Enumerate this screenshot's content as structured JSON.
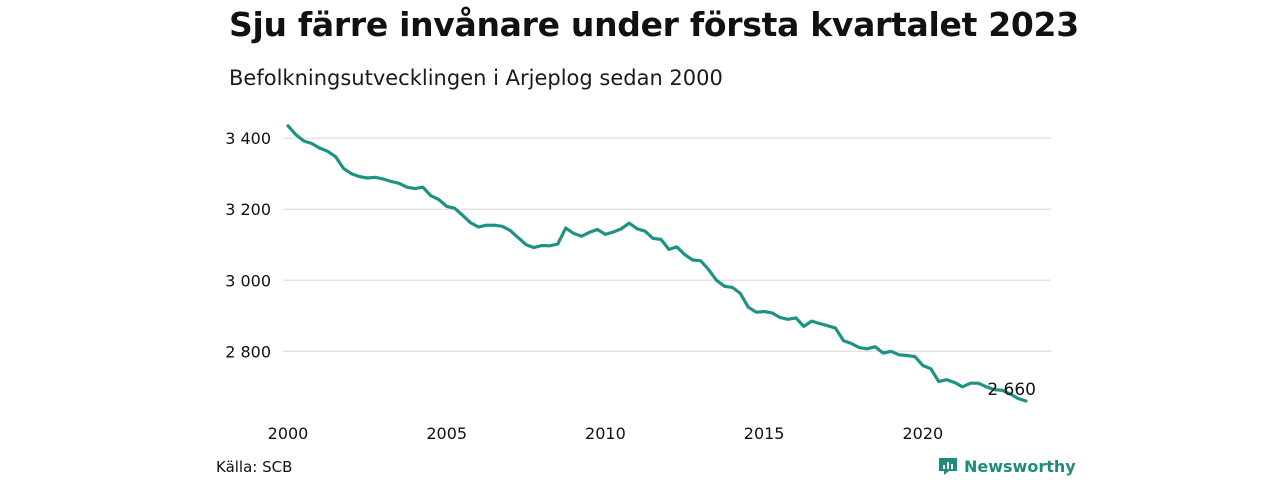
{
  "title": "Sju färre invånare under första kvartalet 2023",
  "subtitle": "Befolkningsutvecklingen i Arjeplog sedan 2000",
  "source": "Källa: SCB",
  "brand": "Newsworthy",
  "colors": {
    "line": "#1e9384",
    "grid": "#dedede",
    "text": "#111111",
    "brand": "#1e8c7c"
  },
  "chart_data": {
    "type": "line",
    "title": "Sju färre invånare under första kvartalet 2023",
    "subtitle": "Befolkningsutvecklingen i Arjeplog sedan 2000",
    "xlabel": "",
    "ylabel": "",
    "xlim": [
      2000,
      2023.25
    ],
    "ylim": [
      2660,
      3440
    ],
    "x_ticks": [
      2000,
      2005,
      2010,
      2015,
      2020
    ],
    "x_tick_labels": [
      "2000",
      "2005",
      "2010",
      "2015",
      "2020"
    ],
    "y_ticks": [
      2800,
      3000,
      3200,
      3400
    ],
    "y_tick_labels": [
      "2 800",
      "3 000",
      "3 200",
      "3 400"
    ],
    "grid": "horizontal",
    "legend": "none",
    "annotation": {
      "x": 2023.25,
      "y": 2660,
      "text": "2 660"
    },
    "series": [
      {
        "x": [
          2000.0,
          2000.25,
          2000.5,
          2000.75,
          2001.0,
          2001.25,
          2001.5,
          2001.75,
          2002.0,
          2002.25,
          2002.5,
          2002.75,
          2003.0,
          2003.25,
          2003.5,
          2003.75,
          2004.0,
          2004.25,
          2004.5,
          2004.75,
          2005.0,
          2005.25,
          2005.5,
          2005.75,
          2006.0,
          2006.25,
          2006.5,
          2006.75,
          2007.0,
          2007.25,
          2007.5,
          2007.75,
          2008.0,
          2008.25,
          2008.5,
          2008.75,
          2009.0,
          2009.25,
          2009.5,
          2009.75,
          2010.0,
          2010.25,
          2010.5,
          2010.75,
          2011.0,
          2011.25,
          2011.5,
          2011.75,
          2012.0,
          2012.25,
          2012.5,
          2012.75,
          2013.0,
          2013.25,
          2013.5,
          2013.75,
          2014.0,
          2014.25,
          2014.5,
          2014.75,
          2015.0,
          2015.25,
          2015.5,
          2015.75,
          2016.0,
          2016.25,
          2016.5,
          2016.75,
          2017.0,
          2017.25,
          2017.5,
          2017.75,
          2018.0,
          2018.25,
          2018.5,
          2018.75,
          2019.0,
          2019.25,
          2019.5,
          2019.75,
          2020.0,
          2020.25,
          2020.5,
          2020.75,
          2021.0,
          2021.25,
          2021.5,
          2021.75,
          2022.0,
          2022.25,
          2022.5,
          2022.75,
          2023.0,
          2023.25
        ],
        "values": [
          3435,
          3410,
          3392,
          3385,
          3372,
          3363,
          3348,
          3315,
          3300,
          3292,
          3288,
          3290,
          3285,
          3278,
          3273,
          3262,
          3258,
          3262,
          3238,
          3227,
          3208,
          3203,
          3183,
          3162,
          3150,
          3155,
          3155,
          3152,
          3140,
          3120,
          3100,
          3092,
          3098,
          3097,
          3102,
          3147,
          3132,
          3124,
          3135,
          3143,
          3129,
          3136,
          3145,
          3161,
          3145,
          3138,
          3118,
          3115,
          3087,
          3094,
          3072,
          3057,
          3055,
          3030,
          3000,
          2983,
          2980,
          2963,
          2924,
          2910,
          2912,
          2908,
          2895,
          2890,
          2894,
          2870,
          2885,
          2878,
          2872,
          2865,
          2830,
          2822,
          2810,
          2807,
          2813,
          2795,
          2800,
          2790,
          2788,
          2785,
          2760,
          2751,
          2715,
          2720,
          2712,
          2700,
          2710,
          2710,
          2700,
          2692,
          2690,
          2680,
          2667,
          2660
        ]
      }
    ]
  }
}
